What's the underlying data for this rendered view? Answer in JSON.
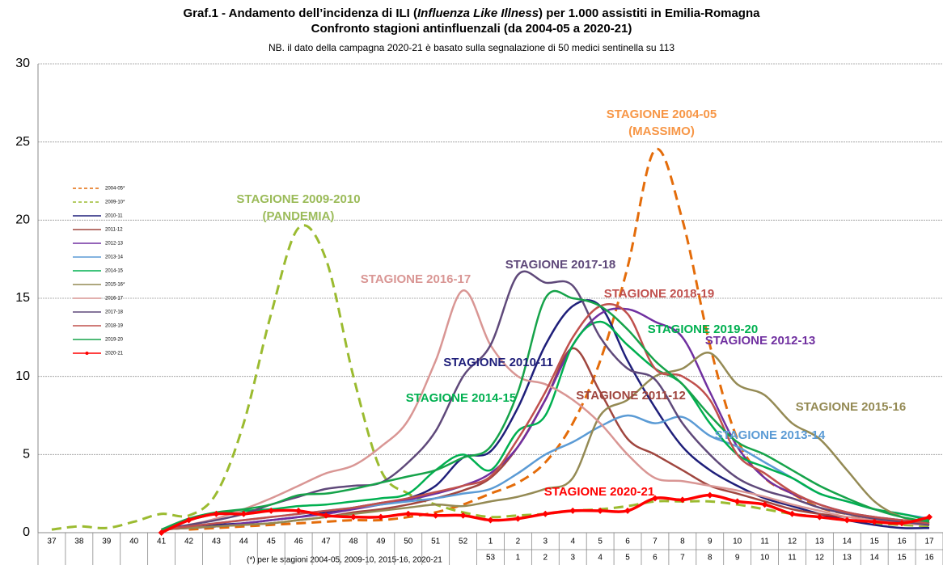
{
  "chart_data": {
    "type": "line",
    "title_parts": [
      "Graf.1 - Andamento dell’incidenza di ILI (",
      "Influenza Like Illness",
      ") per 1.000 assistiti in Emilia-Romagna"
    ],
    "subtitle": "Confronto stagioni antinfluenzali (da 2004-05 a 2020-21)",
    "note": "NB. il dato della campagna 2020-21 è basato sulla segnalazione di 50 medici sentinella su 113",
    "footnote": "(*) per le stagioni 2004-05, 2009-10, 2015-16, 2020-21",
    "categories": [
      "37",
      "38",
      "39",
      "40",
      "41",
      "42",
      "43",
      "44",
      "45",
      "46",
      "47",
      "48",
      "49",
      "50",
      "51",
      "52",
      "1",
      "2",
      "3",
      "4",
      "5",
      "6",
      "7",
      "8",
      "9",
      "10",
      "11",
      "12",
      "13",
      "14",
      "15",
      "16",
      "17"
    ],
    "categories_row2": [
      null,
      null,
      null,
      null,
      null,
      null,
      null,
      null,
      null,
      null,
      null,
      null,
      null,
      null,
      null,
      null,
      "53",
      "1",
      "2",
      "3",
      "4",
      "5",
      "6",
      "7",
      "8",
      "9",
      "10",
      "11",
      "12",
      "13",
      "14",
      "15",
      "16"
    ],
    "ylim": [
      0,
      30
    ],
    "yticks": [
      0,
      5,
      10,
      15,
      20,
      25,
      30
    ],
    "grid": true,
    "series": [
      {
        "name": "2004-05*",
        "color": "#e46c0a",
        "style": "dashed",
        "values": [
          null,
          null,
          null,
          null,
          null,
          0.2,
          0.3,
          0.4,
          0.5,
          0.6,
          0.7,
          0.8,
          0.8,
          1.0,
          1.3,
          1.8,
          2.5,
          3.2,
          4.5,
          7,
          11,
          17,
          24.5,
          20,
          12,
          6,
          3.5,
          2.5,
          1.6,
          1.2,
          0.9,
          0.7,
          0.5
        ]
      },
      {
        "name": "2009-10*",
        "color": "#9bbb30",
        "style": "dashed",
        "values": [
          0.2,
          0.4,
          0.3,
          0.7,
          1.2,
          1.1,
          2.5,
          7,
          14,
          19.5,
          17.5,
          10,
          4,
          2.5,
          1.8,
          1.3,
          1.0,
          1.1,
          1.2,
          1.4,
          1.5,
          1.7,
          2.0,
          2.0,
          2.0,
          1.8,
          1.5,
          1.2,
          1.0,
          0.8,
          0.6,
          0.5,
          0.4
        ]
      },
      {
        "name": "2010-11",
        "color": "#1f1f7a",
        "style": "solid",
        "values": [
          null,
          null,
          null,
          null,
          0.2,
          0.4,
          0.5,
          0.6,
          0.8,
          1.0,
          1.3,
          1.6,
          1.9,
          2.2,
          3,
          4.8,
          5.2,
          8,
          12,
          14.5,
          14.5,
          11,
          8,
          5.5,
          4,
          3,
          2.2,
          1.7,
          1.2,
          0.8,
          0.5,
          0.3,
          0.3
        ]
      },
      {
        "name": "2011-12",
        "color": "#a0463f",
        "style": "solid",
        "values": [
          null,
          null,
          null,
          null,
          0.2,
          0.3,
          0.4,
          0.5,
          0.6,
          0.8,
          1.0,
          1.3,
          1.5,
          1.8,
          2.2,
          2.7,
          3.5,
          5.5,
          8.5,
          11.8,
          9,
          6,
          5,
          4,
          3,
          2.5,
          2,
          1.5,
          1.2,
          1,
          0.8,
          0.6,
          0.5
        ]
      },
      {
        "name": "2012-13",
        "color": "#7030a0",
        "style": "solid",
        "values": [
          null,
          null,
          null,
          null,
          0.2,
          0.3,
          0.4,
          0.6,
          0.8,
          1,
          1.2,
          1.5,
          1.8,
          2.1,
          2.5,
          3,
          3.8,
          5.5,
          8.5,
          12,
          14,
          14.3,
          13.5,
          12.5,
          9,
          5.5,
          3.5,
          2.5,
          1.8,
          1.3,
          1,
          0.8,
          0.6
        ]
      },
      {
        "name": "2013-14",
        "color": "#5b9bd5",
        "style": "solid",
        "values": [
          null,
          null,
          null,
          null,
          0.2,
          0.4,
          0.6,
          0.8,
          1,
          1.2,
          1.4,
          1.6,
          1.8,
          2,
          2.2,
          2.5,
          2.8,
          3.8,
          5,
          5.8,
          6.8,
          7.5,
          7,
          7.4,
          6.2,
          5.5,
          4.5,
          3.5,
          2.5,
          2,
          1.5,
          1.2,
          0.9
        ]
      },
      {
        "name": "2014-15",
        "color": "#00b050",
        "style": "solid",
        "values": [
          null,
          null,
          null,
          null,
          0.2,
          0.8,
          1.2,
          1.4,
          1.5,
          1.7,
          1.8,
          2,
          2.2,
          2.5,
          4,
          5,
          4,
          6.5,
          7.5,
          12,
          13.5,
          12,
          10.5,
          9.5,
          7,
          5,
          4.2,
          3.5,
          2.5,
          2,
          1.5,
          1.2,
          0.8
        ]
      },
      {
        "name": "2015-16*",
        "color": "#948a54",
        "style": "solid",
        "values": [
          null,
          null,
          null,
          null,
          0.2,
          0.3,
          0.4,
          0.5,
          0.6,
          0.8,
          1,
          1.2,
          1.4,
          1.6,
          1.8,
          1.7,
          2,
          2.3,
          2.8,
          3.5,
          7.5,
          8.5,
          10,
          10.5,
          11.5,
          9.5,
          8.8,
          7,
          6,
          4,
          2,
          1,
          0.6
        ]
      },
      {
        "name": "2016-17",
        "color": "#d99694",
        "style": "solid",
        "values": [
          null,
          null,
          null,
          null,
          0.2,
          0.5,
          0.9,
          1.5,
          2.2,
          3,
          3.8,
          4.3,
          5.5,
          7.2,
          11,
          15.5,
          12,
          10,
          9.5,
          8.5,
          7,
          5,
          3.5,
          3.3,
          3,
          2.7,
          2.3,
          1.8,
          1.4,
          1,
          0.8,
          0.6,
          0.5
        ]
      },
      {
        "name": "2017-18",
        "color": "#5f497a",
        "style": "solid",
        "values": [
          null,
          null,
          null,
          null,
          0.2,
          0.5,
          0.8,
          1.2,
          1.8,
          2.3,
          2.8,
          3,
          3.2,
          4.5,
          6.5,
          10,
          12,
          16.5,
          16,
          15.8,
          12.5,
          10.5,
          9.8,
          7,
          5,
          3.5,
          2.7,
          2.2,
          1.6,
          1.2,
          0.9,
          0.7,
          0.5
        ]
      },
      {
        "name": "2018-19",
        "color": "#c0504d",
        "style": "solid",
        "values": [
          null,
          null,
          null,
          null,
          0.2,
          0.4,
          0.6,
          0.8,
          1,
          1.2,
          1.4,
          1.6,
          1.9,
          2.2,
          2.6,
          3,
          3.6,
          6,
          9,
          12.5,
          14.5,
          14,
          10.5,
          10,
          8.5,
          5,
          3.8,
          2.6,
          1.8,
          1.3,
          1,
          0.8,
          0.6
        ]
      },
      {
        "name": "2019-20",
        "color": "#16a34a",
        "style": "solid",
        "values": [
          null,
          null,
          null,
          null,
          0.2,
          0.9,
          1.3,
          1.5,
          1.8,
          2.4,
          2.5,
          2.8,
          3.2,
          3.6,
          4,
          4.8,
          5.5,
          9,
          15,
          15,
          14.5,
          13,
          11,
          9.5,
          7.5,
          5.8,
          5,
          4,
          3,
          2.2,
          1.5,
          1,
          0.7
        ]
      },
      {
        "name": "2020-21",
        "color": "#ff0000",
        "style": "markers",
        "values": [
          null,
          null,
          null,
          null,
          0,
          0.8,
          1.2,
          1.2,
          1.4,
          1.4,
          1.1,
          1.0,
          1.0,
          1.2,
          1.1,
          1.1,
          0.8,
          0.9,
          1.2,
          1.4,
          1.4,
          1.4,
          2.2,
          2.1,
          2.4,
          2.0,
          1.8,
          1.2,
          1.0,
          0.8,
          0.7,
          0.6,
          1.0
        ]
      }
    ],
    "annotations": [
      {
        "text": "STAGIONE 2004-05",
        "color": "#f79646"
      },
      {
        "text": "(MASSIMO)",
        "color": "#f79646"
      },
      {
        "text": "STAGIONE 2009-2010",
        "color": "#9bbb59"
      },
      {
        "text": "(PANDEMIA)",
        "color": "#9bbb59"
      },
      {
        "text": "STAGIONE 2016-17",
        "color": "#d99694"
      },
      {
        "text": "STAGIONE 2017-18",
        "color": "#5f497a"
      },
      {
        "text": "STAGIONE 2018-19",
        "color": "#c0504d"
      },
      {
        "text": "STAGIONE 2019-20",
        "color": "#00b050"
      },
      {
        "text": "STAGIONE 2012-13",
        "color": "#7030a0"
      },
      {
        "text": "STAGIONE 2010-11",
        "color": "#1f1f7a"
      },
      {
        "text": "STAGIONE 2011-12",
        "color": "#a0463f"
      },
      {
        "text": "STAGIONE 2014-15",
        "color": "#00b050"
      },
      {
        "text": "STAGIONE 2015-16",
        "color": "#948a54"
      },
      {
        "text": "STAGIONE 2013-14",
        "color": "#5b9bd5"
      },
      {
        "text": "STAGIONE 2020-21",
        "color": "#ff0000"
      }
    ]
  }
}
